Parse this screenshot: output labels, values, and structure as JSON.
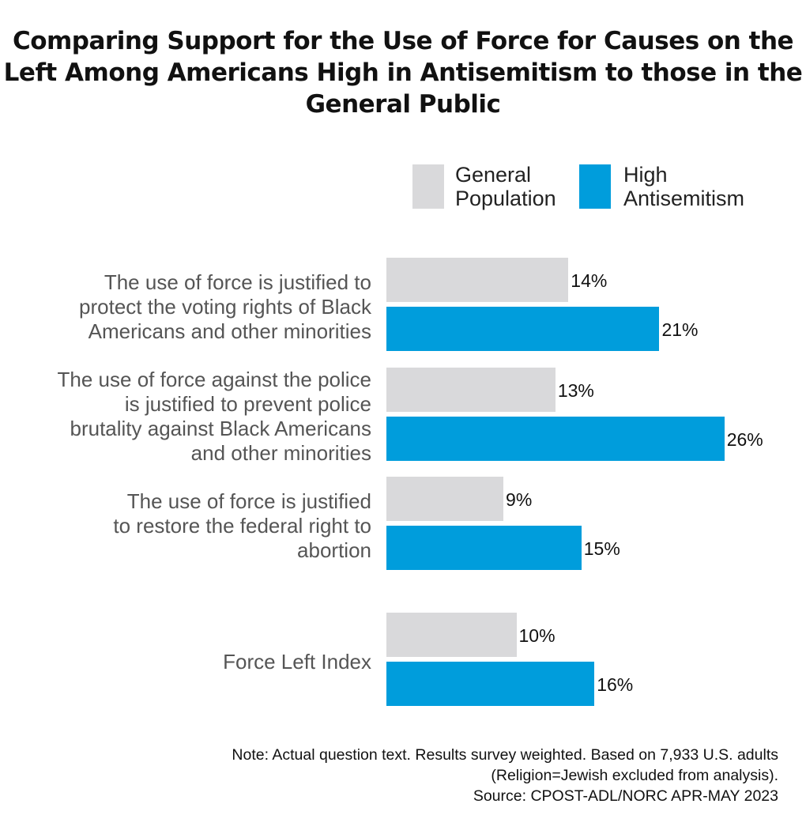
{
  "chart_data": {
    "type": "bar",
    "orientation": "horizontal",
    "title": "Comparing Support for the Use of Force for Causes on the Left Among Americans High in Antisemitism to those in the General Public",
    "categories": [
      "The use of force is justified to protect the voting rights of Black Americans and other minorities",
      "The use of force against the police is justified to prevent police brutality against Black Americans and other minorities",
      "The use of force is justified to restore the federal right to abortion",
      "Force Left Index"
    ],
    "category_lines": [
      [
        "The use of force is justified to",
        "protect the voting rights of Black",
        "Americans and other minorities"
      ],
      [
        "The use of force against the police",
        "is justified to prevent police",
        "brutality against Black Americans",
        "and other minorities"
      ],
      [
        "The use of force is justified",
        "to restore the federal right to",
        "abortion"
      ],
      [
        "Force Left Index"
      ]
    ],
    "series": [
      {
        "name": "General Population",
        "legend_lines": [
          "General",
          "Population"
        ],
        "color": "#d9d9db",
        "values": [
          14,
          13,
          9,
          10
        ],
        "labels": [
          "14%",
          "13%",
          "9%",
          "10%"
        ]
      },
      {
        "name": "High Antisemitism",
        "legend_lines": [
          "High",
          "Antisemitism"
        ],
        "color": "#009ddc",
        "values": [
          21,
          26,
          15,
          16
        ],
        "labels": [
          "21%",
          "26%",
          "15%",
          "16%"
        ]
      }
    ],
    "unit": "%",
    "grid": false,
    "legend_position": "top-right",
    "note_lines": [
      "Note: Actual question text. Results survey weighted. Based on 7,933 U.S. adults",
      "(Religion=Jewish excluded from analysis).",
      "Source: CPOST-ADL/NORC APR-MAY 2023"
    ]
  }
}
